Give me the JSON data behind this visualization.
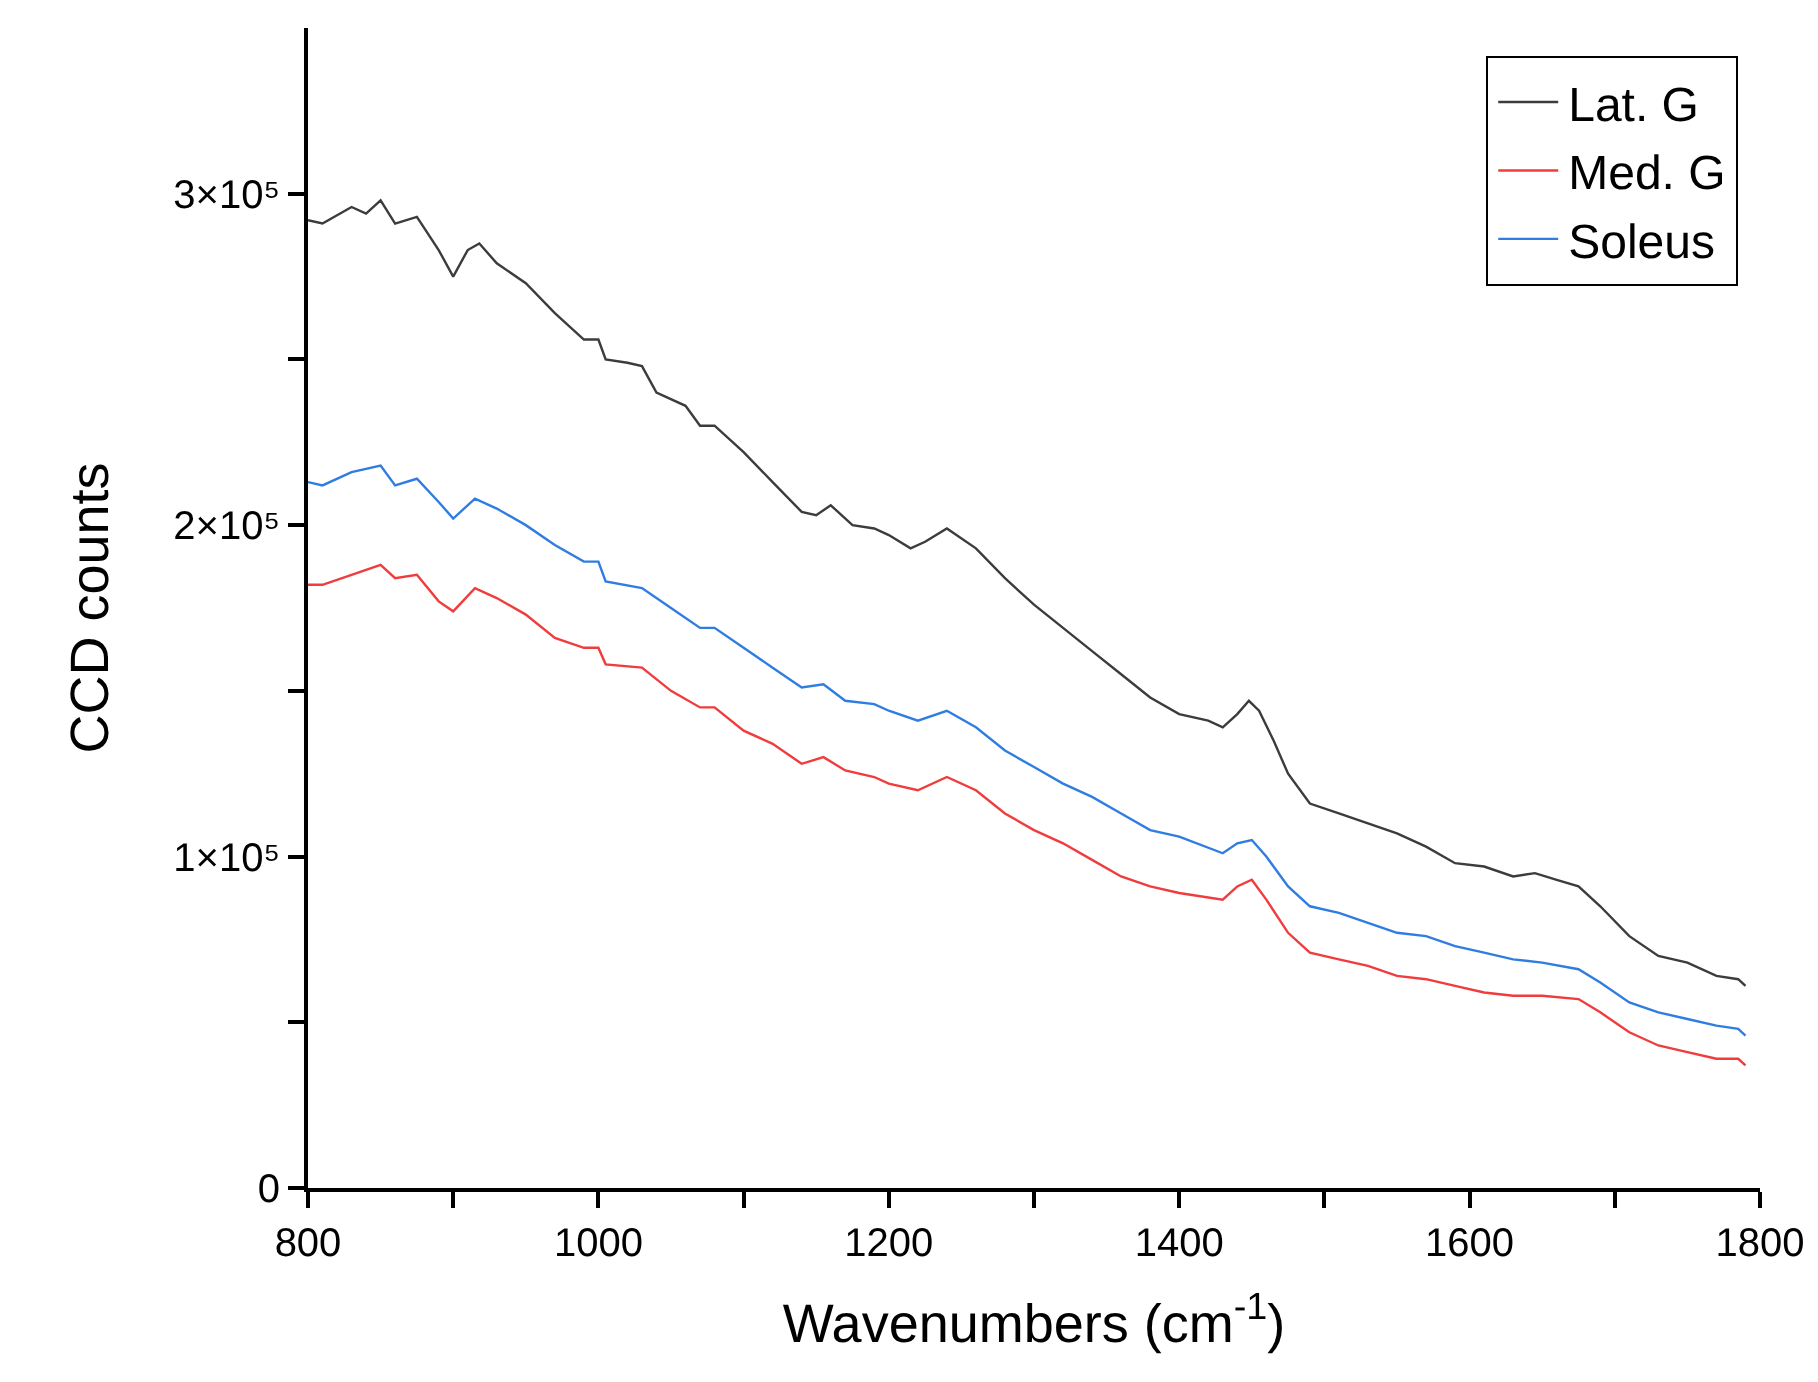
{
  "chart_data": {
    "type": "line",
    "xlabel": "Wavenumbers (cm$^{-1}$)",
    "ylabel": "CCD counts",
    "xlim": [
      800,
      1800
    ],
    "ylim": [
      0,
      350000
    ],
    "xticks": [
      800,
      {
        "value": 900,
        "label": null
      },
      1000,
      {
        "value": 1100,
        "label": null
      },
      1200,
      {
        "value": 1300,
        "label": null
      },
      1400,
      {
        "value": 1500,
        "label": null
      },
      1600,
      {
        "value": 1700,
        "label": null
      },
      1800
    ],
    "yticks": [
      0,
      {
        "value": 50000,
        "label": null
      },
      {
        "value": 100000,
        "label": "1×10⁵"
      },
      {
        "value": 150000,
        "label": null
      },
      {
        "value": 200000,
        "label": "2×10⁵"
      },
      {
        "value": 250000,
        "label": null
      },
      {
        "value": 300000,
        "label": "3×10⁵"
      }
    ],
    "grid": false,
    "legend": "top right",
    "marker": "none",
    "line_style": "solid",
    "series": [
      {
        "name": "Lat. G",
        "color": "#3c3c3c",
        "x": [
          800,
          810,
          830,
          840,
          850,
          860,
          875,
          890,
          900,
          910,
          918,
          930,
          950,
          970,
          990,
          1000,
          1005,
          1020,
          1030,
          1040,
          1060,
          1070,
          1080,
          1100,
          1120,
          1140,
          1150,
          1160,
          1175,
          1190,
          1200,
          1215,
          1225,
          1240,
          1260,
          1280,
          1300,
          1320,
          1340,
          1360,
          1380,
          1400,
          1420,
          1430,
          1440,
          1448,
          1455,
          1465,
          1475,
          1490,
          1510,
          1530,
          1550,
          1570,
          1590,
          1610,
          1630,
          1645,
          1660,
          1675,
          1690,
          1710,
          1730,
          1750,
          1770,
          1785,
          1790
        ],
        "values": [
          292000,
          291000,
          296000,
          294000,
          298000,
          291000,
          293000,
          283000,
          275000,
          283000,
          285000,
          279000,
          273000,
          264000,
          256000,
          256000,
          250000,
          249000,
          248000,
          240000,
          236000,
          230000,
          230000,
          222000,
          213000,
          204000,
          203000,
          206000,
          200000,
          199000,
          197000,
          193000,
          195000,
          199000,
          193000,
          184000,
          176000,
          169000,
          162000,
          155000,
          148000,
          143000,
          141000,
          139000,
          143000,
          147000,
          144000,
          135000,
          125000,
          116000,
          113000,
          110000,
          107000,
          103000,
          98000,
          97000,
          94000,
          95000,
          93000,
          91000,
          85000,
          76000,
          70000,
          68000,
          64000,
          63000,
          61000
        ]
      },
      {
        "name": "Med. G",
        "color": "#f03c3c",
        "x": [
          800,
          810,
          830,
          850,
          860,
          875,
          890,
          900,
          915,
          930,
          950,
          970,
          990,
          1000,
          1005,
          1030,
          1050,
          1070,
          1080,
          1100,
          1120,
          1140,
          1155,
          1170,
          1190,
          1200,
          1220,
          1240,
          1260,
          1280,
          1300,
          1320,
          1340,
          1360,
          1380,
          1400,
          1430,
          1440,
          1450,
          1460,
          1475,
          1490,
          1510,
          1530,
          1550,
          1570,
          1590,
          1610,
          1630,
          1650,
          1675,
          1690,
          1710,
          1730,
          1750,
          1770,
          1785,
          1790
        ],
        "values": [
          182000,
          182000,
          185000,
          188000,
          184000,
          185000,
          177000,
          174000,
          181000,
          178000,
          173000,
          166000,
          163000,
          163000,
          158000,
          157000,
          150000,
          145000,
          145000,
          138000,
          134000,
          128000,
          130000,
          126000,
          124000,
          122000,
          120000,
          124000,
          120000,
          113000,
          108000,
          104000,
          99000,
          94000,
          91000,
          89000,
          87000,
          91000,
          93000,
          87000,
          77000,
          71000,
          69000,
          67000,
          64000,
          63000,
          61000,
          59000,
          58000,
          58000,
          57000,
          53000,
          47000,
          43000,
          41000,
          39000,
          39000,
          37000
        ]
      },
      {
        "name": "Soleus",
        "color": "#2f7de1",
        "x": [
          800,
          810,
          830,
          850,
          860,
          875,
          890,
          900,
          915,
          930,
          950,
          970,
          990,
          1000,
          1005,
          1030,
          1050,
          1070,
          1080,
          1100,
          1120,
          1140,
          1155,
          1170,
          1190,
          1200,
          1220,
          1240,
          1260,
          1280,
          1300,
          1320,
          1340,
          1360,
          1380,
          1400,
          1430,
          1440,
          1450,
          1460,
          1475,
          1490,
          1510,
          1530,
          1550,
          1570,
          1590,
          1610,
          1630,
          1650,
          1675,
          1690,
          1710,
          1730,
          1750,
          1770,
          1785,
          1790
        ],
        "values": [
          213000,
          212000,
          216000,
          218000,
          212000,
          214000,
          207000,
          202000,
          208000,
          205000,
          200000,
          194000,
          189000,
          189000,
          183000,
          181000,
          175000,
          169000,
          169000,
          163000,
          157000,
          151000,
          152000,
          147000,
          146000,
          144000,
          141000,
          144000,
          139000,
          132000,
          127000,
          122000,
          118000,
          113000,
          108000,
          106000,
          101000,
          104000,
          105000,
          100000,
          91000,
          85000,
          83000,
          80000,
          77000,
          76000,
          73000,
          71000,
          69000,
          68000,
          66000,
          62000,
          56000,
          53000,
          51000,
          49000,
          48000,
          46000
        ]
      }
    ]
  }
}
